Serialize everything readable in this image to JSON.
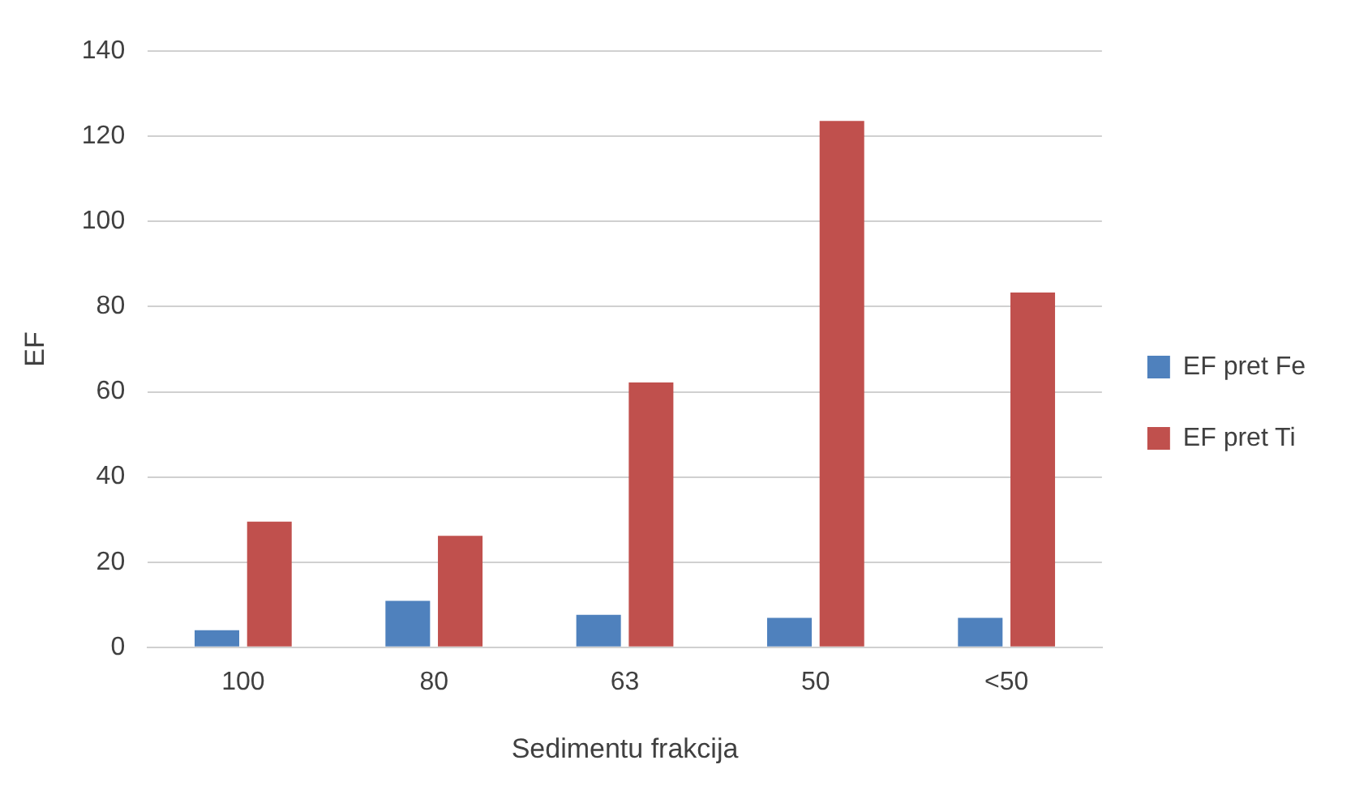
{
  "chart_data": {
    "type": "bar",
    "xlabel": "Sedimentu frakcija",
    "ylabel": "EF",
    "categories": [
      "100",
      "80",
      "63",
      "50",
      "<50"
    ],
    "series": [
      {
        "name": "EF pret Fe",
        "color": "#4f81bd",
        "values": [
          4,
          10.9,
          7.6,
          6.9,
          6.9
        ]
      },
      {
        "name": "EF pret Ti",
        "color": "#c0504d",
        "values": [
          29.5,
          26.2,
          62.2,
          123.6,
          83.3
        ]
      }
    ],
    "ylim": [
      0,
      140
    ],
    "yticks": [
      0,
      20,
      40,
      60,
      80,
      100,
      120,
      140
    ],
    "grid": "y",
    "legend": "right"
  }
}
